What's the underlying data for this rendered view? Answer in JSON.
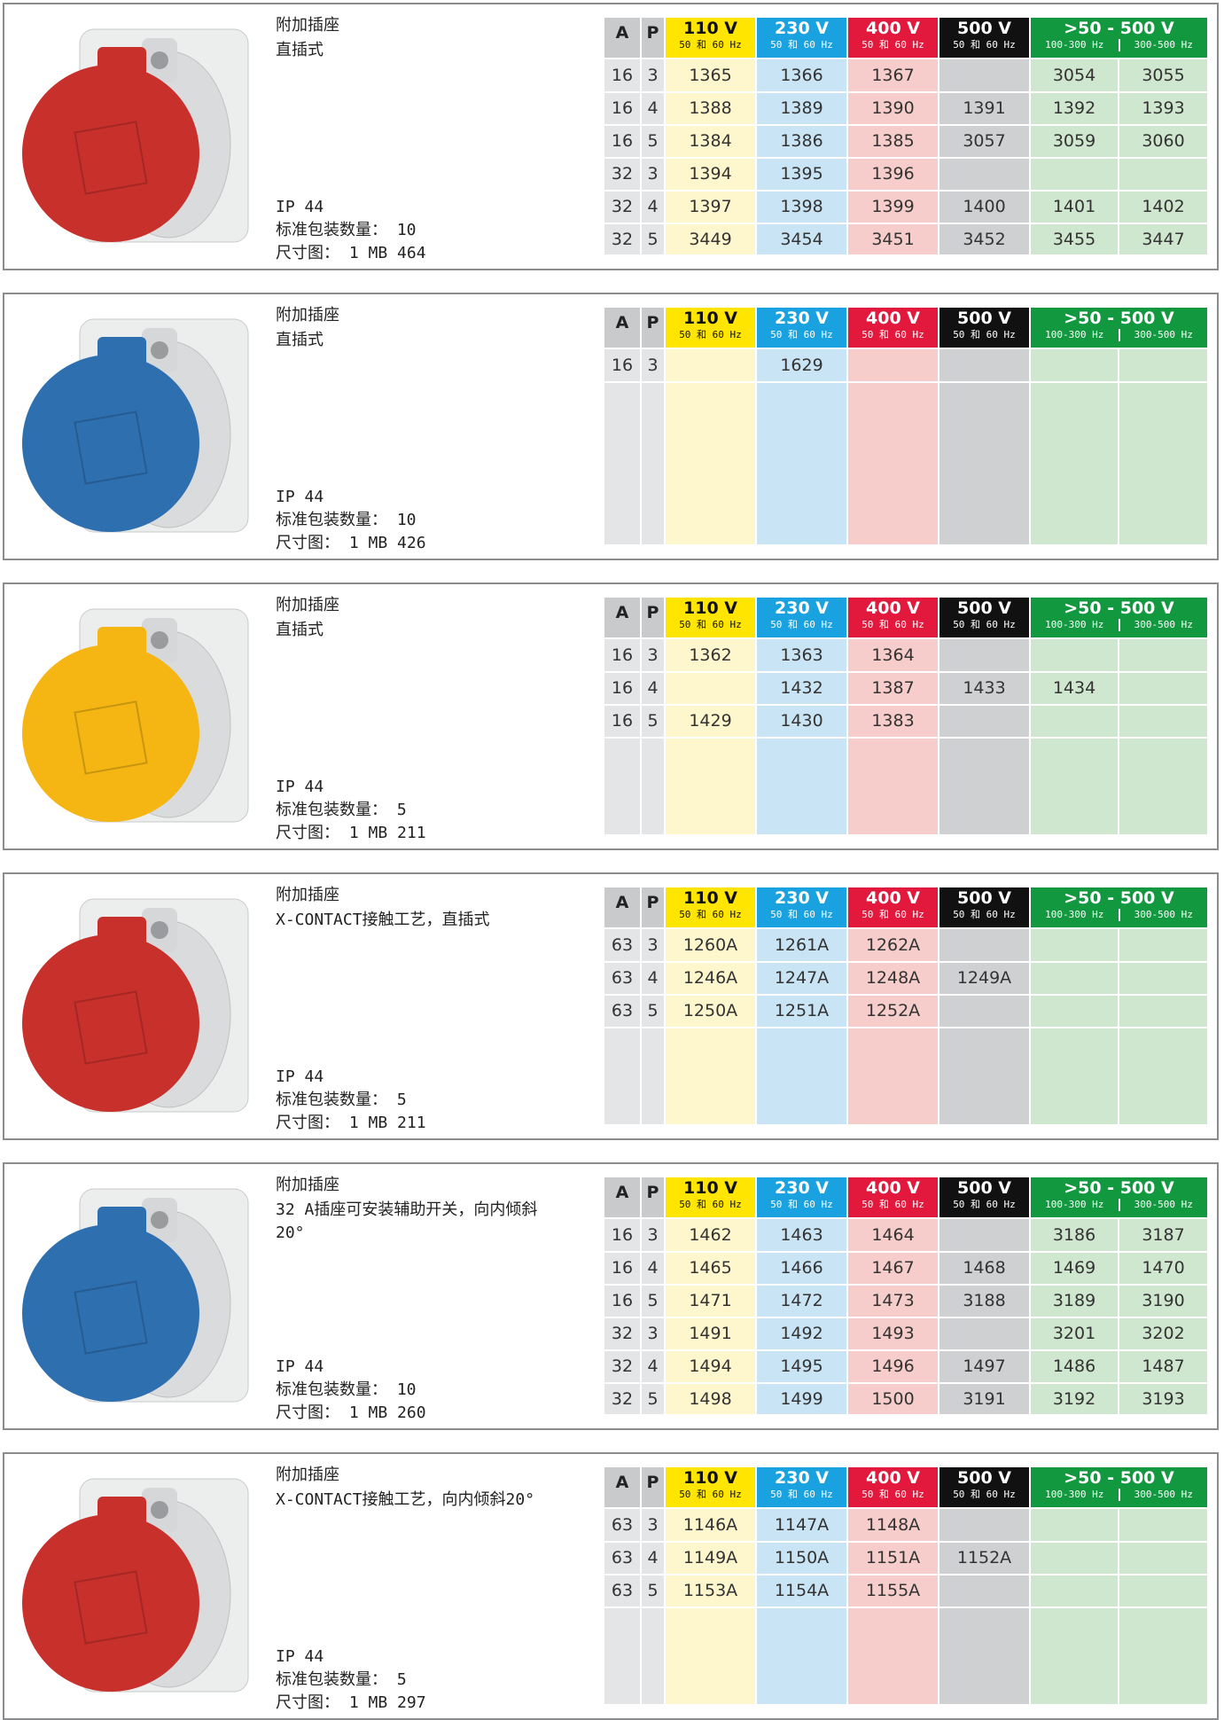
{
  "table_header": {
    "a": "A",
    "p": "P",
    "voltages": [
      {
        "v": "110 V",
        "hz": "50 和 60 Hz"
      },
      {
        "v": "230 V",
        "hz": "50 和 60 Hz"
      },
      {
        "v": "400 V",
        "hz": "50 和 60 Hz"
      },
      {
        "v": "500 V",
        "hz": "50 和 60 Hz"
      }
    ],
    "range": {
      "v": ">50 - 500 V",
      "hz": [
        "100-300 Hz",
        "300-500 Hz"
      ]
    }
  },
  "products": [
    {
      "color": "#c8302c",
      "title": "附加插座",
      "subtitle": "直插式",
      "ip": "IP 44",
      "pack": "标准包装数量： 10",
      "drawing": "尺寸图： 1 MB 464",
      "rows": [
        [
          "16",
          "3",
          "1365",
          "1366",
          "1367",
          null,
          "3054",
          "3055"
        ],
        [
          "16",
          "4",
          "1388",
          "1389",
          "1390",
          "1391",
          "1392",
          "1393"
        ],
        [
          "16",
          "5",
          "1384",
          "1386",
          "1385",
          "3057",
          "3059",
          "3060"
        ],
        [
          "32",
          "3",
          "1394",
          "1395",
          "1396",
          null,
          null,
          null
        ],
        [
          "32",
          "4",
          "1397",
          "1398",
          "1399",
          "1400",
          "1401",
          "1402"
        ],
        [
          "32",
          "5",
          "3449",
          "3454",
          "3451",
          "3452",
          "3455",
          "3447"
        ]
      ]
    },
    {
      "color": "#2e6fb0",
      "title": "附加插座",
      "subtitle": "直插式",
      "ip": "IP 44",
      "pack": "标准包装数量： 10",
      "drawing": "尺寸图： 1 MB 426",
      "rows": [
        [
          "16",
          "3",
          null,
          "1629",
          null,
          null,
          null,
          null
        ]
      ]
    },
    {
      "color": "#f5b614",
      "title": "附加插座",
      "subtitle": "直插式",
      "ip": "IP 44",
      "pack": "标准包装数量： 5",
      "drawing": "尺寸图： 1 MB 211",
      "rows": [
        [
          "16",
          "3",
          "1362",
          "1363",
          "1364",
          null,
          null,
          null
        ],
        [
          "16",
          "4",
          null,
          "1432",
          "1387",
          "1433",
          "1434",
          null
        ],
        [
          "16",
          "5",
          "1429",
          "1430",
          "1383",
          null,
          null,
          null
        ]
      ]
    },
    {
      "color": "#c8302c",
      "title": "附加插座",
      "subtitle": "X-CONTACT接触工艺，直插式",
      "ip": "IP 44",
      "pack": "标准包装数量： 5",
      "drawing": "尺寸图： 1 MB 211",
      "rows": [
        [
          "63",
          "3",
          "1260A",
          "1261A",
          "1262A",
          null,
          null,
          null
        ],
        [
          "63",
          "4",
          "1246A",
          "1247A",
          "1248A",
          "1249A",
          null,
          null
        ],
        [
          "63",
          "5",
          "1250A",
          "1251A",
          "1252A",
          null,
          null,
          null
        ]
      ]
    },
    {
      "color": "#2e6fb0",
      "title": "附加插座",
      "subtitle": "32 A插座可安装辅助开关，向内倾斜20°",
      "ip": "IP 44",
      "pack": "标准包装数量： 10",
      "drawing": "尺寸图： 1 MB 260",
      "rows": [
        [
          "16",
          "3",
          "1462",
          "1463",
          "1464",
          null,
          "3186",
          "3187"
        ],
        [
          "16",
          "4",
          "1465",
          "1466",
          "1467",
          "1468",
          "1469",
          "1470"
        ],
        [
          "16",
          "5",
          "1471",
          "1472",
          "1473",
          "3188",
          "3189",
          "3190"
        ],
        [
          "32",
          "3",
          "1491",
          "1492",
          "1493",
          null,
          "3201",
          "3202"
        ],
        [
          "32",
          "4",
          "1494",
          "1495",
          "1496",
          "1497",
          "1486",
          "1487"
        ],
        [
          "32",
          "5",
          "1498",
          "1499",
          "1500",
          "3191",
          "3192",
          "3193"
        ]
      ]
    },
    {
      "color": "#c8302c",
      "title": "附加插座",
      "subtitle": "X-CONTACT接触工艺，向内倾斜20°",
      "ip": "IP 44",
      "pack": "标准包装数量： 5",
      "drawing": "尺寸图： 1 MB 297",
      "rows": [
        [
          "63",
          "3",
          "1146A",
          "1147A",
          "1148A",
          null,
          null,
          null
        ],
        [
          "63",
          "4",
          "1149A",
          "1150A",
          "1151A",
          "1152A",
          null,
          null
        ],
        [
          "63",
          "5",
          "1153A",
          "1154A",
          "1155A",
          null,
          null,
          null
        ]
      ]
    }
  ]
}
